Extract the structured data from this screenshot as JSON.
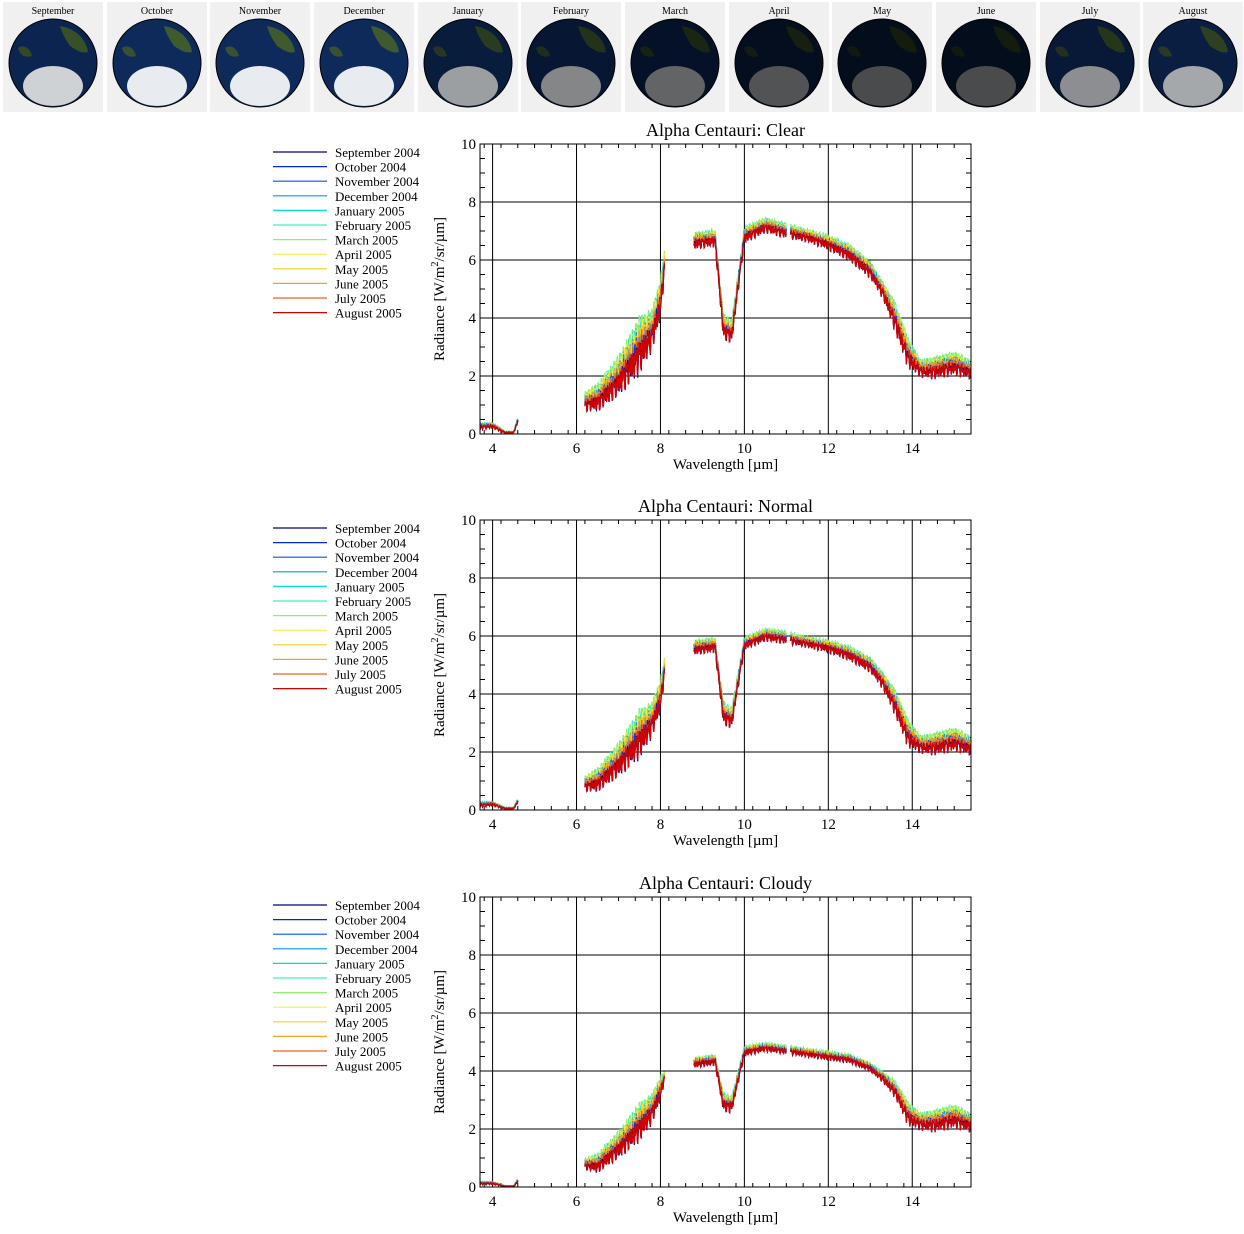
{
  "globe_strip": {
    "months": [
      "September",
      "October",
      "November",
      "December",
      "January",
      "February",
      "March",
      "April",
      "May",
      "June",
      "July",
      "August"
    ],
    "illumination": [
      0.85,
      1.0,
      1.0,
      1.0,
      0.55,
      0.4,
      0.2,
      0.1,
      0.05,
      0.05,
      0.45,
      0.6
    ]
  },
  "colors": {
    "series": [
      "#00008b",
      "#0028d8",
      "#0058e8",
      "#0098f0",
      "#00d8e8",
      "#40f0c0",
      "#90ee70",
      "#f0f040",
      "#f8d020",
      "#f8a020",
      "#f06020",
      "#d00000"
    ]
  },
  "chart_data": [
    {
      "type": "line",
      "title": "Alpha Centauri: Clear",
      "xlabel": "Wavelength [µm]",
      "ylabel_prefix": "Radiance [W/m",
      "ylabel_sup": "2",
      "ylabel_suffix": "/sr/µm]",
      "xlim": [
        3.7,
        15.4
      ],
      "ylim": [
        0,
        10
      ],
      "xticks": [
        "4",
        "6",
        "8",
        "10",
        "12",
        "14"
      ],
      "xtick_values": [
        4,
        6,
        8,
        10,
        12,
        14
      ],
      "yticks": [
        "0",
        "2",
        "4",
        "6",
        "8",
        "10"
      ],
      "ytick_values": [
        0,
        2,
        4,
        6,
        8,
        10
      ],
      "grid": true,
      "legend_position": "left",
      "series": [
        {
          "name": "September 2004"
        },
        {
          "name": "October 2004"
        },
        {
          "name": "November 2004"
        },
        {
          "name": "December 2004"
        },
        {
          "name": "January 2005"
        },
        {
          "name": "February 2005"
        },
        {
          "name": "March 2005"
        },
        {
          "name": "April 2005"
        },
        {
          "name": "May 2005"
        },
        {
          "name": "June 2005"
        },
        {
          "name": "July 2005"
        },
        {
          "name": "August 2005"
        }
      ],
      "envelope": {
        "x": [
          3.7,
          4.0,
          4.3,
          4.5,
          4.6,
          6.2,
          6.5,
          7.0,
          7.5,
          7.8,
          8.0,
          8.1,
          8.8,
          9.3,
          9.5,
          9.7,
          10.0,
          10.5,
          11.0,
          11.5,
          12.0,
          12.5,
          13.0,
          13.3,
          13.6,
          13.9,
          14.2,
          14.5,
          15.0,
          15.4
        ],
        "upper": [
          0.4,
          0.4,
          0.1,
          0.1,
          0.6,
          1.5,
          1.8,
          2.8,
          4.2,
          4.4,
          5.5,
          6.4,
          7.0,
          7.1,
          4.2,
          4.0,
          7.2,
          7.5,
          7.3,
          7.1,
          6.9,
          6.6,
          6.0,
          5.3,
          4.6,
          3.4,
          2.6,
          2.7,
          2.9,
          2.6
        ],
        "lower": [
          0.1,
          0.15,
          0.0,
          0.0,
          0.3,
          0.6,
          0.5,
          0.9,
          1.5,
          2.5,
          3.5,
          5.3,
          6.2,
          6.3,
          3.0,
          2.9,
          6.4,
          6.8,
          6.6,
          6.5,
          6.2,
          5.8,
          5.2,
          4.5,
          3.2,
          2.0,
          1.8,
          1.7,
          1.8,
          1.7
        ]
      }
    },
    {
      "type": "line",
      "title": "Alpha Centauri: Normal",
      "xlabel": "Wavelength [µm]",
      "ylabel_prefix": "Radiance [W/m",
      "ylabel_sup": "2",
      "ylabel_suffix": "/sr/µm]",
      "xlim": [
        3.7,
        15.4
      ],
      "ylim": [
        0,
        10
      ],
      "xticks": [
        "4",
        "6",
        "8",
        "10",
        "12",
        "14"
      ],
      "xtick_values": [
        4,
        6,
        8,
        10,
        12,
        14
      ],
      "yticks": [
        "0",
        "2",
        "4",
        "6",
        "8",
        "10"
      ],
      "ytick_values": [
        0,
        2,
        4,
        6,
        8,
        10
      ],
      "grid": true,
      "legend_position": "left",
      "series": [
        {
          "name": "September 2004"
        },
        {
          "name": "October 2004"
        },
        {
          "name": "November 2004"
        },
        {
          "name": "December 2004"
        },
        {
          "name": "January 2005"
        },
        {
          "name": "February 2005"
        },
        {
          "name": "March 2005"
        },
        {
          "name": "April 2005"
        },
        {
          "name": "May 2005"
        },
        {
          "name": "June 2005"
        },
        {
          "name": "July 2005"
        },
        {
          "name": "August 2005"
        }
      ],
      "envelope": {
        "x": [
          3.7,
          4.0,
          4.3,
          4.5,
          4.6,
          6.2,
          6.5,
          7.0,
          7.5,
          7.8,
          8.0,
          8.1,
          8.8,
          9.3,
          9.5,
          9.7,
          10.0,
          10.5,
          11.0,
          11.5,
          12.0,
          12.5,
          13.0,
          13.3,
          13.6,
          13.9,
          14.2,
          14.5,
          15.0,
          15.4
        ],
        "upper": [
          0.3,
          0.3,
          0.1,
          0.1,
          0.4,
          1.2,
          1.5,
          2.4,
          3.6,
          3.8,
          4.6,
          5.3,
          5.9,
          6.0,
          3.8,
          3.6,
          6.0,
          6.3,
          6.2,
          6.0,
          5.9,
          5.7,
          5.3,
          4.8,
          4.2,
          3.2,
          2.6,
          2.7,
          2.9,
          2.6
        ],
        "lower": [
          0.05,
          0.1,
          0.0,
          0.0,
          0.2,
          0.5,
          0.4,
          0.8,
          1.3,
          2.2,
          3.0,
          4.4,
          5.2,
          5.3,
          2.7,
          2.6,
          5.4,
          5.7,
          5.6,
          5.5,
          5.3,
          5.0,
          4.6,
          4.0,
          3.0,
          1.9,
          1.8,
          1.7,
          1.8,
          1.7
        ]
      }
    },
    {
      "type": "line",
      "title": "Alpha Centauri: Cloudy",
      "xlabel": "Wavelength [µm]",
      "ylabel_prefix": "Radiance [W/m",
      "ylabel_sup": "2",
      "ylabel_suffix": "/sr/µm]",
      "xlim": [
        3.7,
        15.4
      ],
      "ylim": [
        0,
        10
      ],
      "xticks": [
        "4",
        "6",
        "8",
        "10",
        "12",
        "14"
      ],
      "xtick_values": [
        4,
        6,
        8,
        10,
        12,
        14
      ],
      "yticks": [
        "0",
        "2",
        "4",
        "6",
        "8",
        "10"
      ],
      "ytick_values": [
        0,
        2,
        4,
        6,
        8,
        10
      ],
      "grid": true,
      "legend_position": "left",
      "series": [
        {
          "name": "September 2004"
        },
        {
          "name": "October 2004"
        },
        {
          "name": "November 2004"
        },
        {
          "name": "December 2004"
        },
        {
          "name": "January 2005"
        },
        {
          "name": "February 2005"
        },
        {
          "name": "March 2005"
        },
        {
          "name": "April 2005"
        },
        {
          "name": "May 2005"
        },
        {
          "name": "June 2005"
        },
        {
          "name": "July 2005"
        },
        {
          "name": "August 2005"
        }
      ],
      "envelope": {
        "x": [
          3.7,
          4.0,
          4.3,
          4.5,
          4.6,
          6.2,
          6.5,
          7.0,
          7.5,
          7.8,
          8.0,
          8.1,
          8.8,
          9.3,
          9.5,
          9.7,
          10.0,
          10.5,
          11.0,
          11.5,
          12.0,
          12.5,
          13.0,
          13.3,
          13.6,
          13.9,
          14.2,
          14.5,
          15.0,
          15.4
        ],
        "upper": [
          0.2,
          0.2,
          0.05,
          0.05,
          0.3,
          1.0,
          1.2,
          2.0,
          3.0,
          3.3,
          3.9,
          4.0,
          4.5,
          4.6,
          3.3,
          3.2,
          4.9,
          5.0,
          4.9,
          4.8,
          4.7,
          4.6,
          4.3,
          4.0,
          3.7,
          3.0,
          2.6,
          2.7,
          2.9,
          2.6
        ],
        "lower": [
          0.05,
          0.05,
          0.0,
          0.0,
          0.1,
          0.5,
          0.3,
          0.7,
          1.2,
          1.9,
          2.7,
          3.6,
          4.0,
          4.1,
          2.4,
          2.4,
          4.4,
          4.6,
          4.5,
          4.4,
          4.3,
          4.2,
          3.9,
          3.5,
          2.9,
          1.9,
          1.8,
          1.7,
          1.8,
          1.7
        ]
      }
    }
  ]
}
